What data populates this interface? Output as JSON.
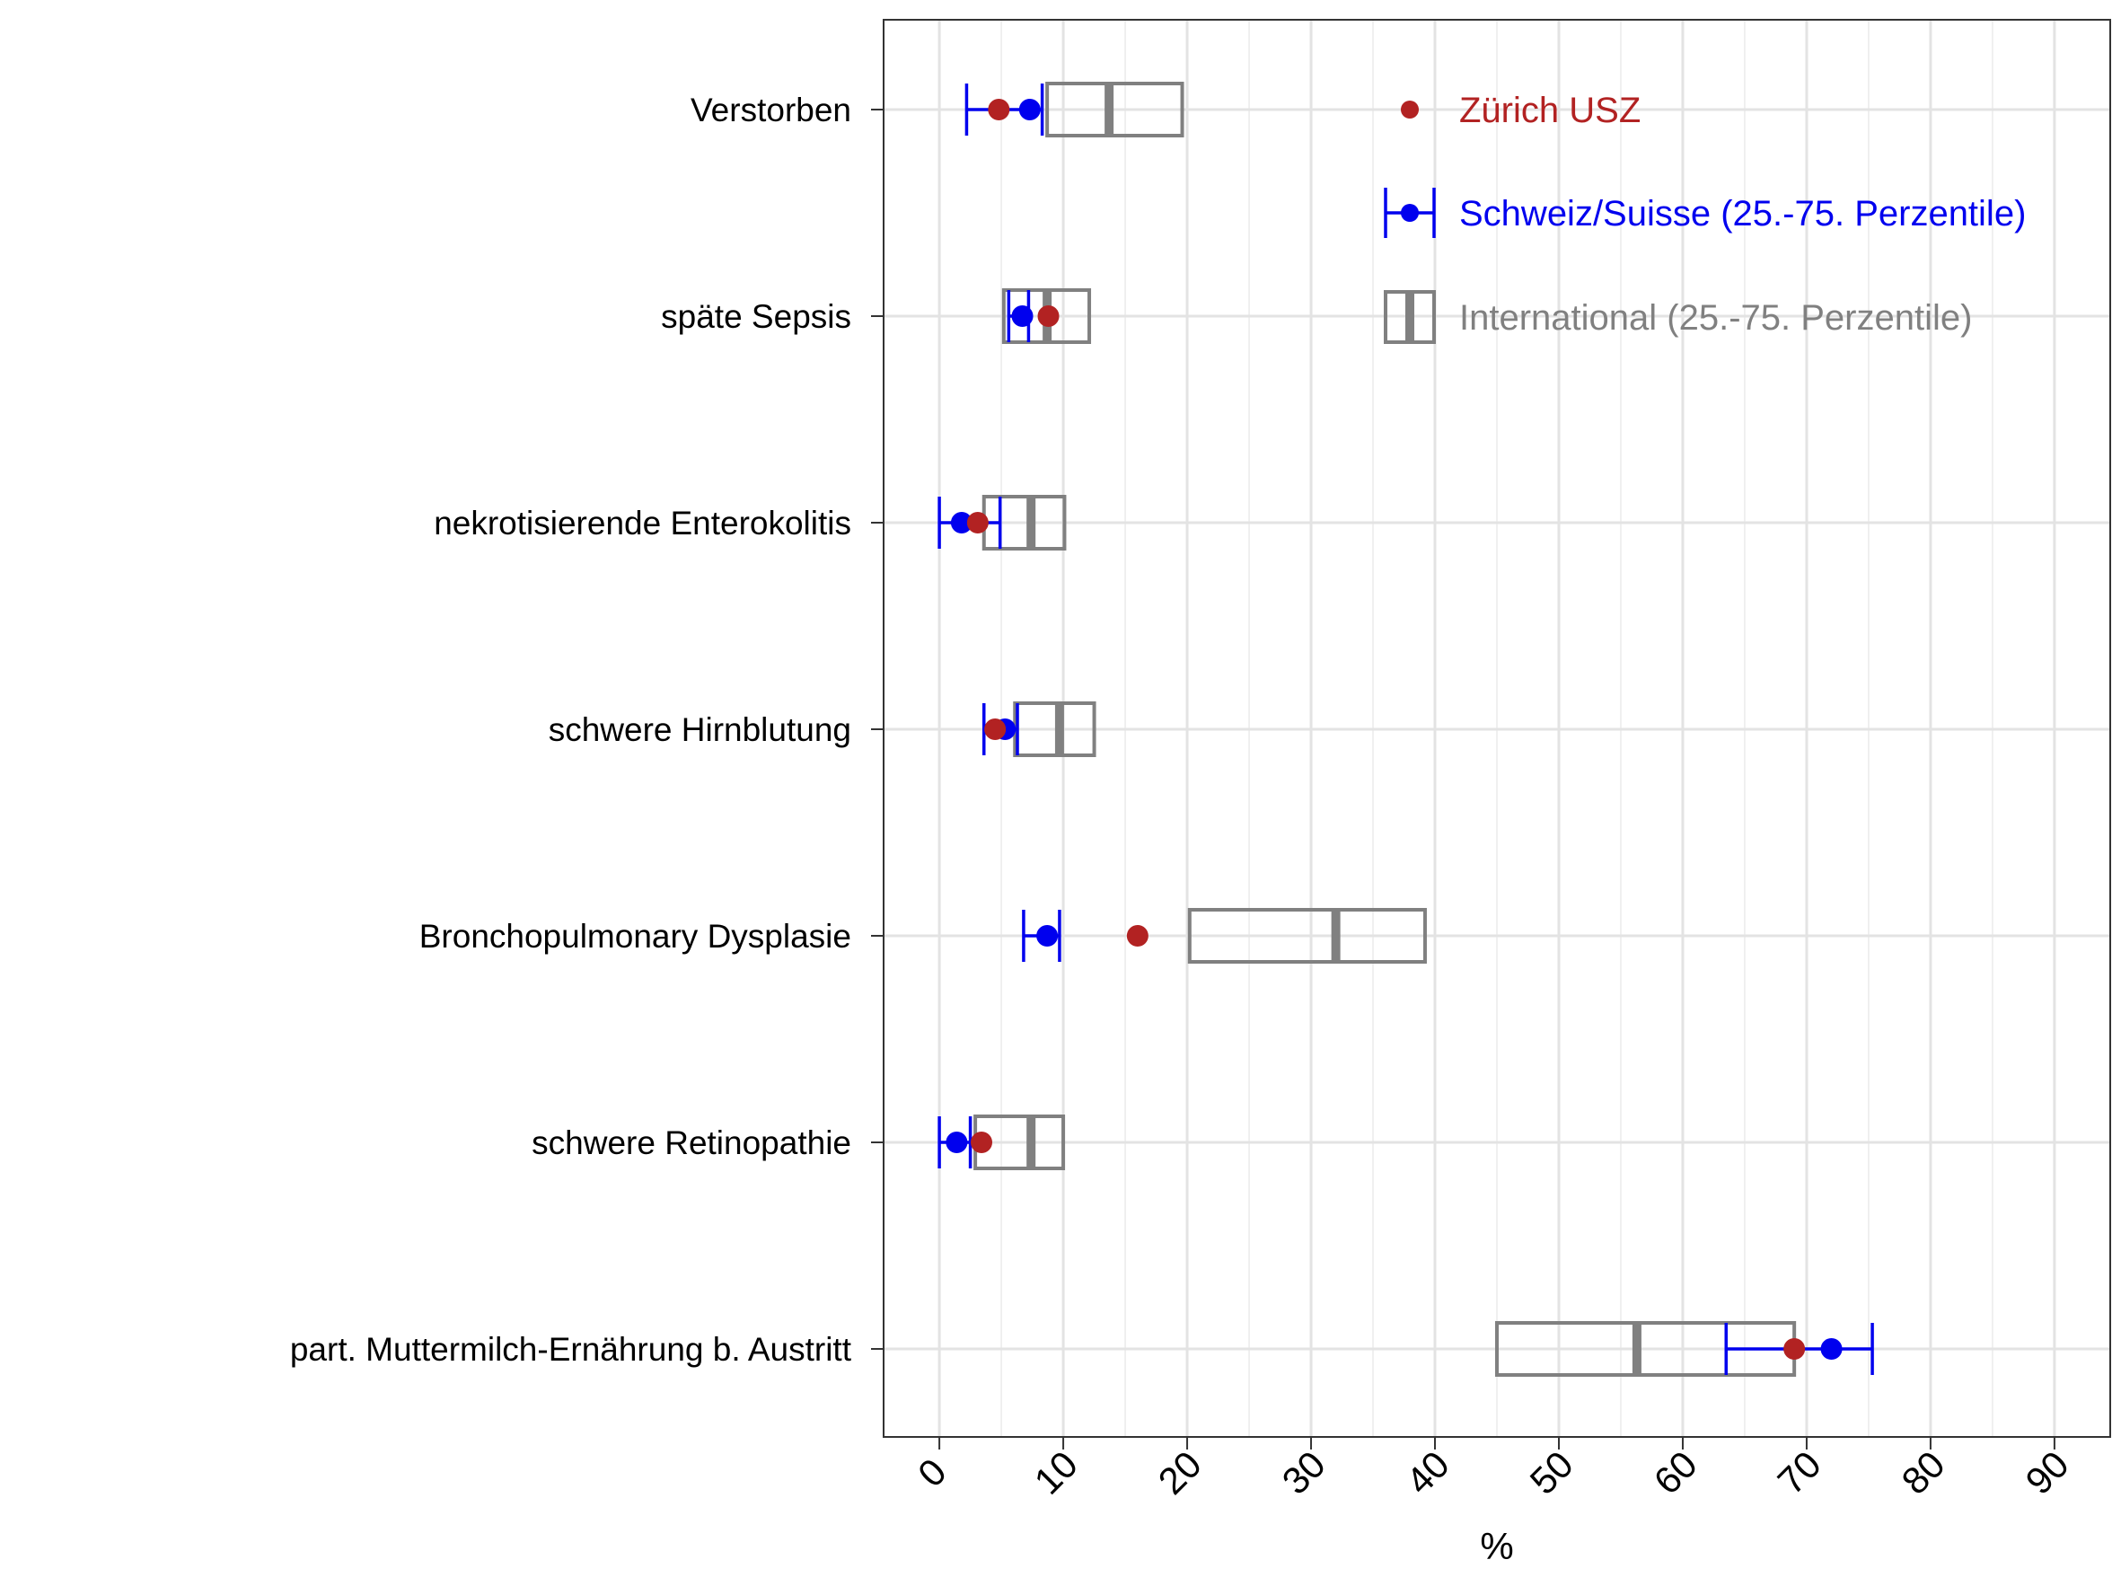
{
  "chart_data": {
    "type": "dot-interval-box",
    "orientation": "horizontal",
    "xlabel": "%",
    "xlim": [
      -4.5,
      94.5
    ],
    "xticks": [
      0,
      10,
      20,
      30,
      40,
      50,
      60,
      70,
      80,
      90
    ],
    "grid": true,
    "legend_position": "top-right",
    "categories": [
      "Verstorben",
      "späte Sepsis",
      "nekrotisierende Enterokolitis",
      "schwere Hirnblutung",
      "Bronchopulmonary Dysplasie",
      "schwere Retinopathie",
      "part. Muttermilch-Ernährung b. Austritt"
    ],
    "series": [
      {
        "name": "Zürich USZ",
        "kind": "point",
        "color": "#B22222",
        "values": [
          4.8,
          8.8,
          3.1,
          4.5,
          16.0,
          3.4,
          69.0
        ]
      },
      {
        "name": "Schweiz/Suisse (25.-75. Perzentile)",
        "kind": "point-interval",
        "color": "#0000EE",
        "values": [
          7.3,
          6.7,
          1.8,
          5.3,
          8.7,
          1.4,
          72.0
        ],
        "lower": [
          2.2,
          5.6,
          0.0,
          3.6,
          6.8,
          0.0,
          63.5
        ],
        "upper": [
          8.3,
          7.2,
          4.9,
          6.3,
          9.7,
          2.5,
          75.3
        ]
      },
      {
        "name": "International (25.-75. Perzentile)",
        "kind": "box",
        "color": "#808080",
        "q1": [
          8.7,
          5.2,
          3.6,
          6.1,
          20.2,
          2.9,
          45.0
        ],
        "median": [
          13.7,
          8.7,
          7.4,
          9.7,
          32.0,
          7.4,
          56.3
        ],
        "q3": [
          19.6,
          12.1,
          10.1,
          12.5,
          39.2,
          10.0,
          69.0
        ]
      }
    ]
  }
}
